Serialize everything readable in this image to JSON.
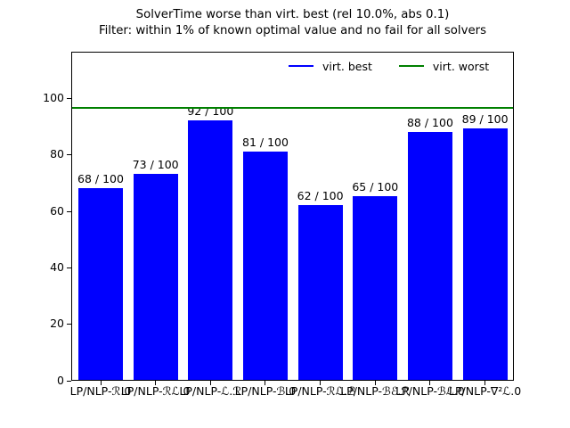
{
  "figure": {
    "title_line1": "SolverTime worse than virt. best (rel 10.0%, abs 0.1)",
    "title_line2": "Filter: within 1% of known optimal value and no fail for all solvers"
  },
  "legend": {
    "entries": [
      {
        "label": "virt. best",
        "color": "#0000ff"
      },
      {
        "label": "virt. worst",
        "color": "#008000"
      }
    ]
  },
  "chart_data": {
    "type": "bar",
    "title": "SolverTime worse than virt. best (rel 10.0%, abs 0.1)",
    "subtitle": "Filter: within 1% of known optimal value and no fail for all solvers",
    "categories": [
      "LP/NLP-ℛ.0",
      "LP/NLP-ℛℒ.0",
      "LP/NLP-ℒ.ℛ",
      "LP/NLP-ℬ.0",
      "LP/NLP-ℛℒ.ℬ",
      "LP/NLP-ℬℰ.ℛ",
      "LP/NLP-ℬℒ.0",
      "LP/NLP-∇²ℒ.0"
    ],
    "values": [
      68,
      73,
      92,
      81,
      62,
      65,
      88,
      89
    ],
    "bar_labels": [
      "68 / 100",
      "73 / 100",
      "92 / 100",
      "81 / 100",
      "62 / 100",
      "65 / 100",
      "88 / 100",
      "89 / 100"
    ],
    "instances_total": 100,
    "bar_color": "#0000ff",
    "virt_worst_line": {
      "value": 97,
      "color": "#008000",
      "label": "virt. worst"
    },
    "virt_best": {
      "color": "#0000ff",
      "label": "virt. best"
    },
    "yticks": [
      0,
      20,
      40,
      60,
      80,
      100
    ],
    "ylim": [
      0,
      116.8
    ],
    "xlabel": "",
    "ylabel": "",
    "grid": false,
    "legend_position": "upper center inside"
  }
}
